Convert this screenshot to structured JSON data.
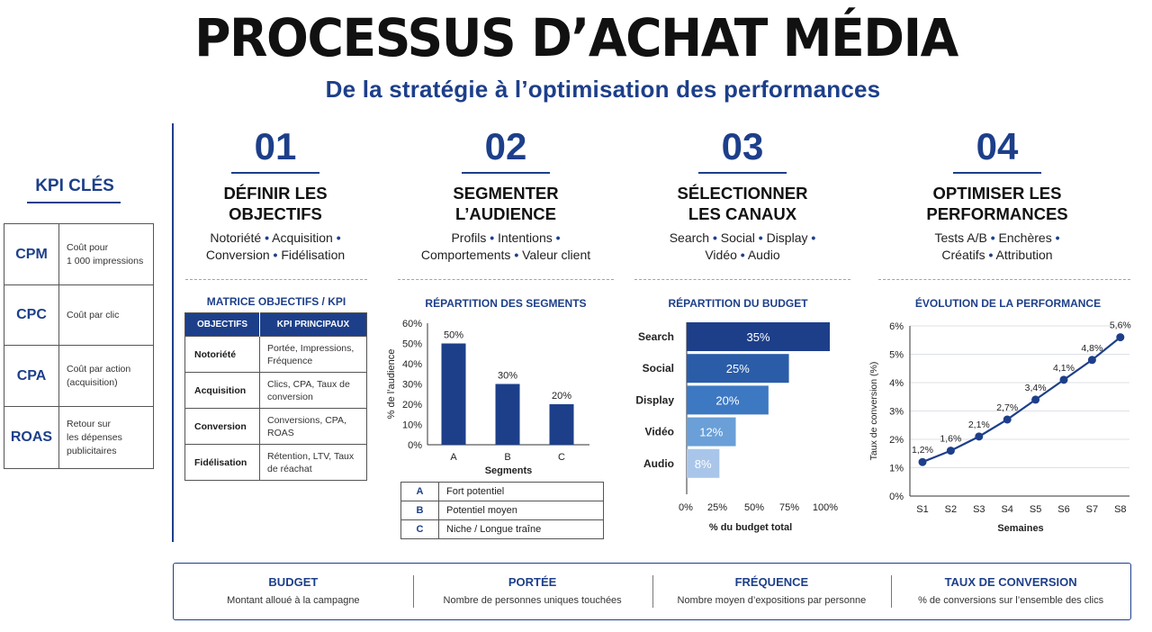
{
  "header": {
    "title": "PROCESSUS D’ACHAT MÉDIA",
    "subtitle": "De la stratégie à l’optimisation des performances"
  },
  "kpi": {
    "title": "KPI CLÉS",
    "items": [
      {
        "abbr": "CPM",
        "desc": "Coût pour\n1 000 impressions"
      },
      {
        "abbr": "CPC",
        "desc": "Coût par clic"
      },
      {
        "abbr": "CPA",
        "desc": "Coût par action\n(acquisition)"
      },
      {
        "abbr": "ROAS",
        "desc": "Retour sur\nles dépenses\npublicitaires"
      }
    ]
  },
  "steps": [
    {
      "num": "01",
      "title": "DÉFINIR LES\nOBJECTIFS",
      "line1": [
        "Notoriété",
        "Acquisition"
      ],
      "line2": [
        "Conversion",
        "Fidélisation"
      ]
    },
    {
      "num": "02",
      "title": "SEGMENTER\nL’AUDIENCE",
      "line1": [
        "Profils",
        "Intentions"
      ],
      "line2": [
        "Comportements",
        "Valeur client"
      ]
    },
    {
      "num": "03",
      "title": "SÉLECTIONNER\nLES CANAUX",
      "line1": [
        "Search",
        "Social",
        "Display"
      ],
      "line2": [
        "Vidéo",
        "Audio"
      ]
    },
    {
      "num": "04",
      "title": "OPTIMISER LES\nPERFORMANCES",
      "line1": [
        "Tests A/B",
        "Enchères"
      ],
      "line2": [
        "Créatifs",
        "Attribution"
      ]
    }
  ],
  "matrix": {
    "title": "MATRICE OBJECTIFS / KPI",
    "headers": [
      "OBJECTIFS",
      "KPI PRINCIPAUX"
    ],
    "rows": [
      {
        "objective": "Notoriété",
        "kpis": "Portée, Impressions, Fréquence"
      },
      {
        "objective": "Acquisition",
        "kpis": "Clics, CPA, Taux de conversion"
      },
      {
        "objective": "Conversion",
        "kpis": "Conversions, CPA, ROAS"
      },
      {
        "objective": "Fidélisation",
        "kpis": "Rétention, LTV, Taux de réachat"
      }
    ]
  },
  "segment_legend": [
    {
      "code": "A",
      "label": "Fort potentiel"
    },
    {
      "code": "B",
      "label": "Potentiel moyen"
    },
    {
      "code": "C",
      "label": "Niche / Longue traîne"
    }
  ],
  "chart_data": [
    {
      "type": "bar",
      "title": "RÉPARTITION DES SEGMENTS",
      "categories": [
        "A",
        "B",
        "C"
      ],
      "values": [
        50,
        30,
        20
      ],
      "data_labels": [
        "50%",
        "30%",
        "20%"
      ],
      "xlabel": "Segments",
      "ylabel": "% de l’audience",
      "ylim": [
        0,
        60
      ],
      "yticks": [
        "0%",
        "10%",
        "20%",
        "30%",
        "40%",
        "50%",
        "60%"
      ],
      "color": "#1d3f8a"
    },
    {
      "type": "bar",
      "orientation": "horizontal",
      "title": "RÉPARTITION DU BUDGET",
      "categories": [
        "Search",
        "Social",
        "Display",
        "Vidéo",
        "Audio"
      ],
      "values": [
        35,
        25,
        20,
        12,
        8
      ],
      "data_labels": [
        "35%",
        "25%",
        "20%",
        "12%",
        "8%"
      ],
      "colors": [
        "#1d3f8a",
        "#2a5ca8",
        "#3d78c2",
        "#6a9fd8",
        "#a9c6ea"
      ],
      "xlabel": "% du budget total",
      "xlim": [
        0,
        35
      ],
      "xticks": [
        "0%",
        "25%",
        "50%",
        "75%",
        "100%"
      ]
    },
    {
      "type": "line",
      "title": "ÉVOLUTION DE LA PERFORMANCE",
      "categories": [
        "S1",
        "S2",
        "S3",
        "S4",
        "S5",
        "S6",
        "S7",
        "S8"
      ],
      "values": [
        1.2,
        1.6,
        2.1,
        2.7,
        3.4,
        4.1,
        4.8,
        5.6
      ],
      "data_labels": [
        "1,2%",
        "1,6%",
        "2,1%",
        "2,7%",
        "3,4%",
        "4,1%",
        "4,8%",
        "5,6%"
      ],
      "xlabel": "Semaines",
      "ylabel": "Taux de conversion (%)",
      "ylim": [
        0,
        6
      ],
      "yticks": [
        "0%",
        "1%",
        "2%",
        "3%",
        "4%",
        "5%",
        "6%"
      ],
      "grid": true,
      "color": "#1d3f8a"
    }
  ],
  "metrics": [
    {
      "name": "BUDGET",
      "desc": "Montant alloué à la campagne"
    },
    {
      "name": "PORTÉE",
      "desc": "Nombre de personnes uniques touchées"
    },
    {
      "name": "FRÉQUENCE",
      "desc": "Nombre moyen d’expositions par personne"
    },
    {
      "name": "TAUX DE CONVERSION",
      "desc": "% de conversions sur l’ensemble des clics"
    }
  ]
}
